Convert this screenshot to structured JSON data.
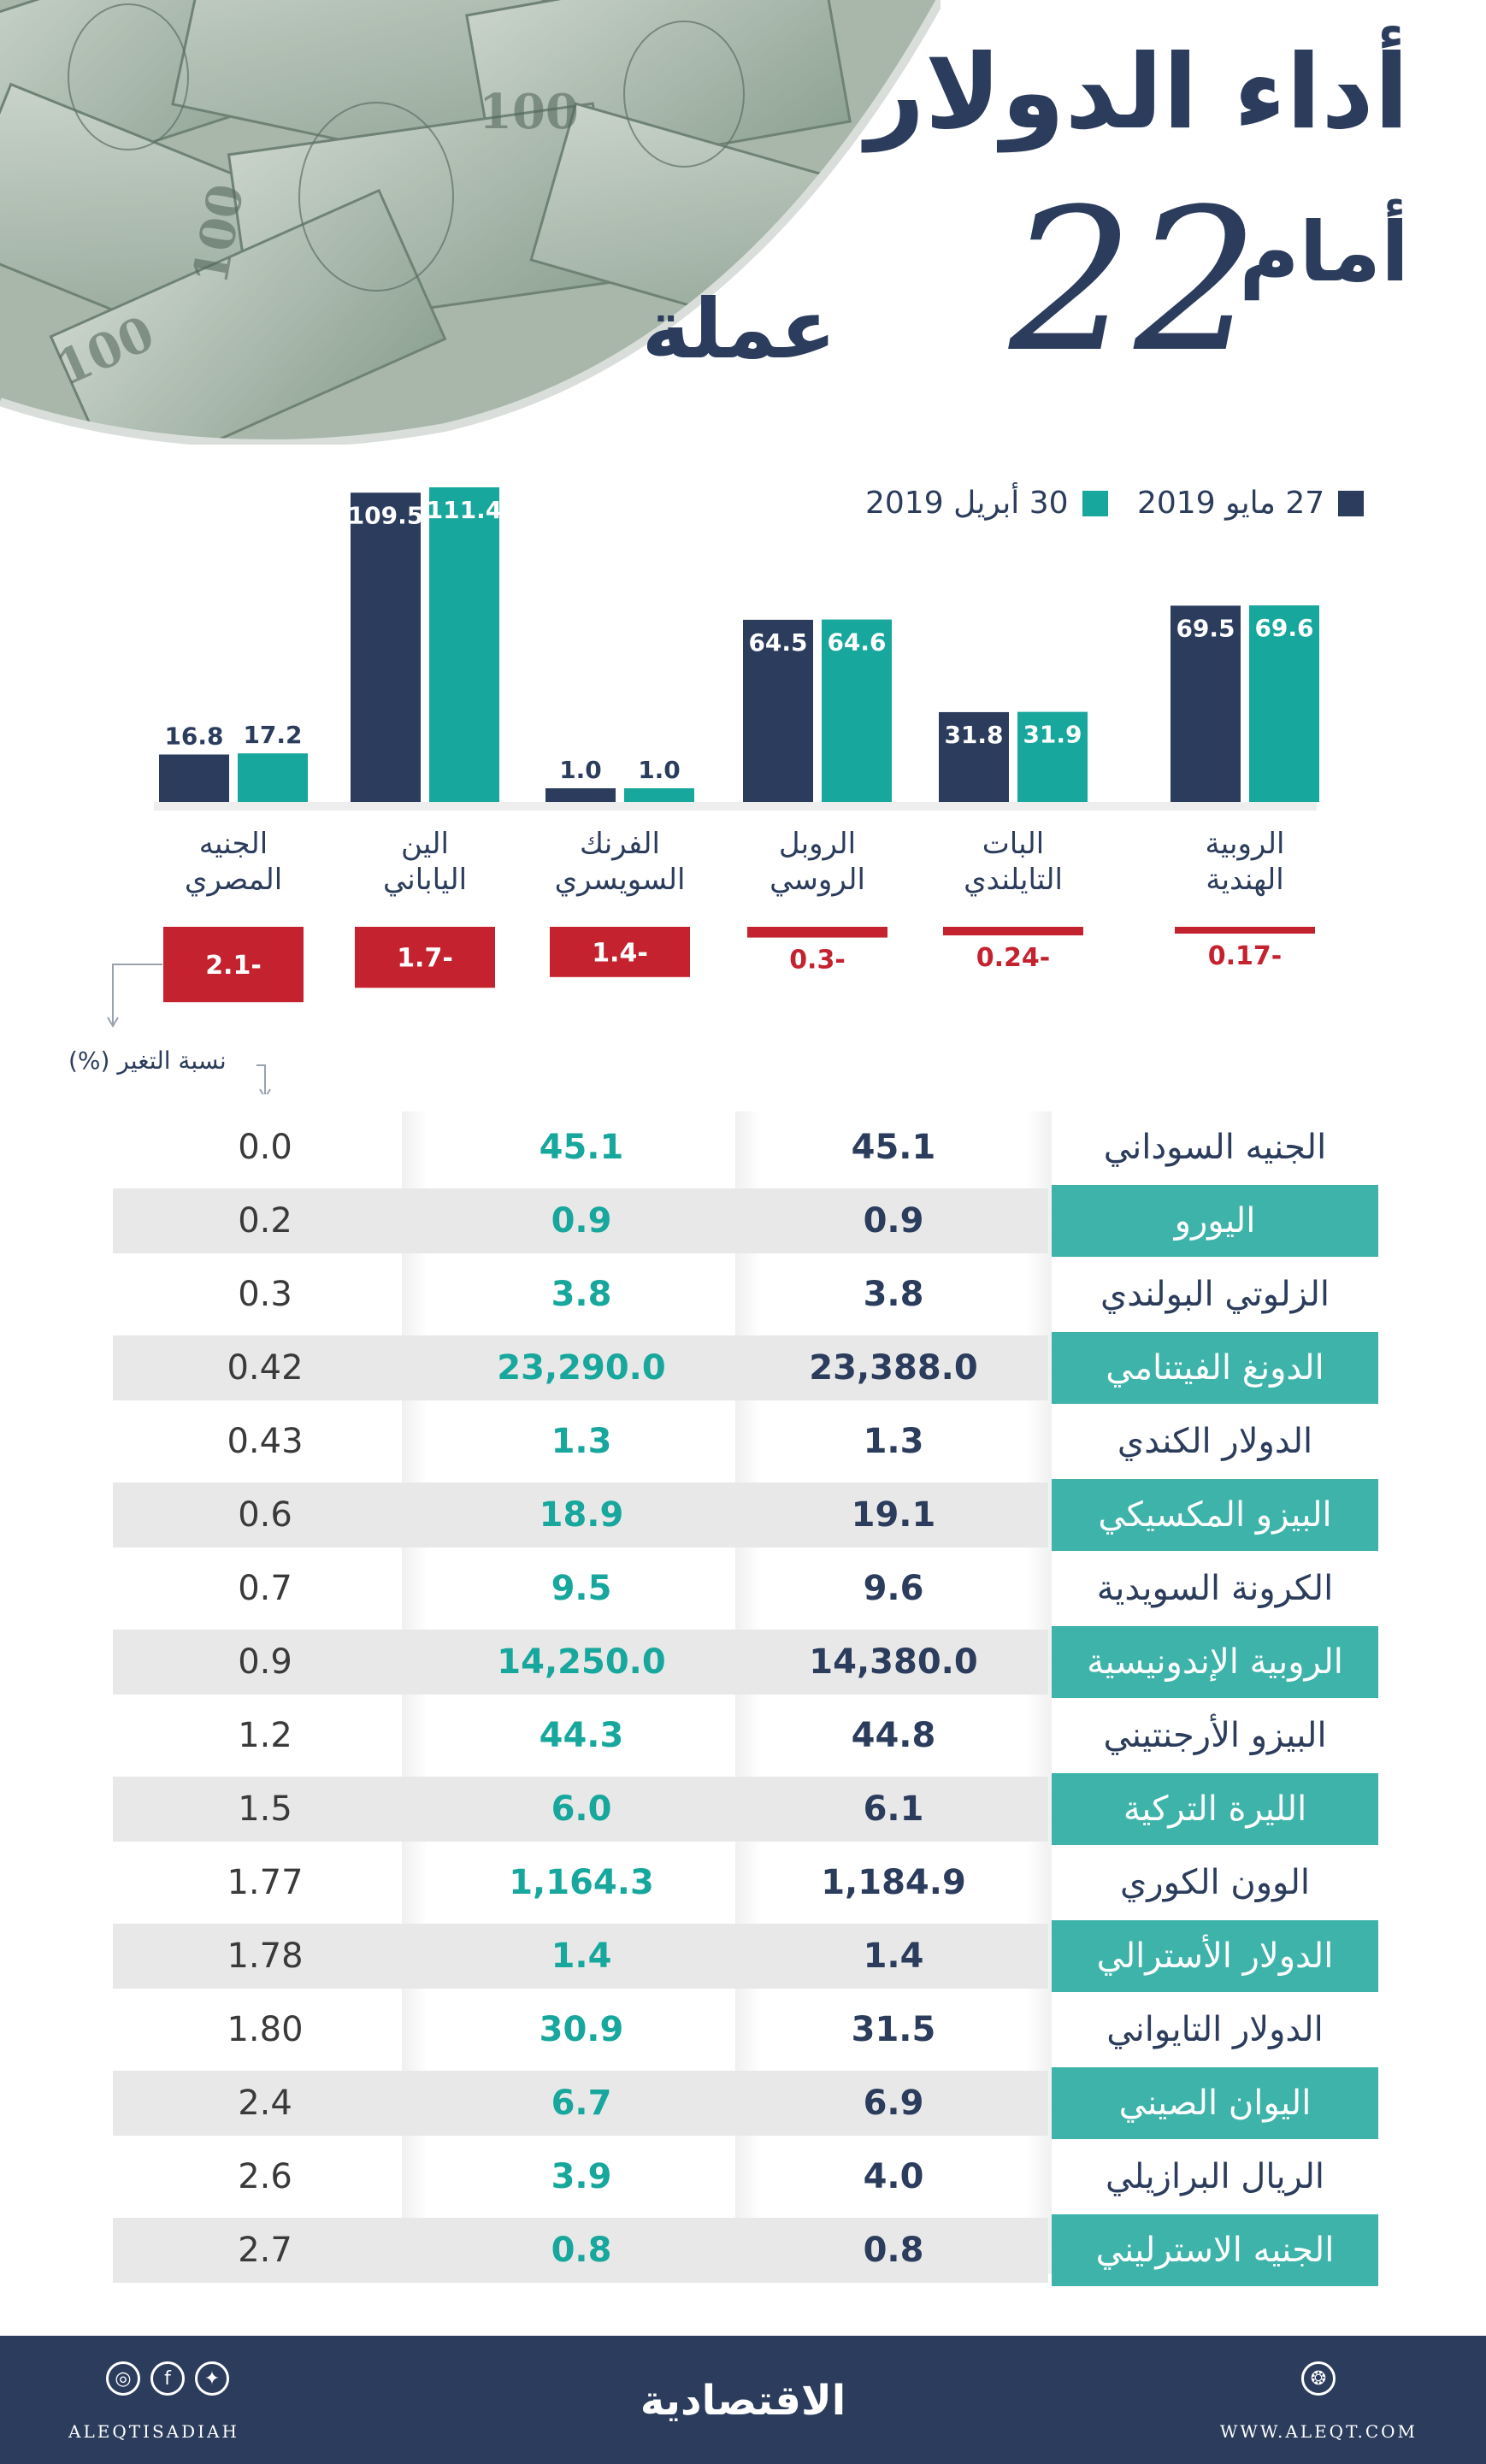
{
  "header": {
    "title_line1": "أداء الدولار",
    "title_line2": "أمام",
    "title_number": "22",
    "title_line3": "عملة"
  },
  "colors": {
    "navy": "#2b3c5c",
    "teal": "#17a79c",
    "red": "#c4222e",
    "row_band": "#e8e8e8",
    "teal_band": "#3db3aa"
  },
  "legend": {
    "may": "27 مايو 2019",
    "april": "30 أبريل 2019"
  },
  "chart_data": {
    "type": "bar",
    "categories": [
      "الروبية الهندية",
      "البات التايلندي",
      "الروبل الروسي",
      "الفرنك السويسري",
      "الين الياباني",
      "الجنيه المصري"
    ],
    "category_lines": [
      [
        "الروبية",
        "الهندية"
      ],
      [
        "البات",
        "التايلندي"
      ],
      [
        "الروبل",
        "الروسي"
      ],
      [
        "الفرنك",
        "السويسري"
      ],
      [
        "الين",
        "الياباني"
      ],
      [
        "الجنيه",
        "المصري"
      ]
    ],
    "series": [
      {
        "name": "27 مايو 2019",
        "values": [
          69.5,
          31.8,
          64.5,
          1.0,
          109.5,
          16.8
        ],
        "labels": [
          "69.5",
          "31.8",
          "64.5",
          "1.0",
          "109.5",
          "16.8"
        ]
      },
      {
        "name": "30 أبريل 2019",
        "values": [
          69.6,
          31.9,
          64.6,
          1.0,
          111.4,
          17.2
        ],
        "labels": [
          "69.6",
          "31.9",
          "64.6",
          "1.0",
          "111.4",
          "17.2"
        ]
      }
    ],
    "change": {
      "values": [
        -0.17,
        -0.24,
        -0.3,
        -1.4,
        -1.7,
        -2.1
      ],
      "labels": [
        "0.17-",
        "0.24-",
        "0.3-",
        "1.4-",
        "1.7-",
        "2.1-"
      ],
      "label": "نسبة التغير (%)"
    }
  },
  "table": {
    "rows": [
      {
        "name": "الجنيه السوداني",
        "may": "45.1",
        "april": "45.1",
        "change": "0.0",
        "shaded": false
      },
      {
        "name": "اليورو",
        "may": "0.9",
        "april": "0.9",
        "change": "0.2",
        "shaded": true
      },
      {
        "name": "الزلوتي البولندي",
        "may": "3.8",
        "april": "3.8",
        "change": "0.3",
        "shaded": false
      },
      {
        "name": "الدونغ الفيتنامي",
        "may": "23,388.0",
        "april": "23,290.0",
        "change": "0.42",
        "shaded": true
      },
      {
        "name": "الدولار الكندي",
        "may": "1.3",
        "april": "1.3",
        "change": "0.43",
        "shaded": false
      },
      {
        "name": "البيزو المكسيكي",
        "may": "19.1",
        "april": "18.9",
        "change": "0.6",
        "shaded": true
      },
      {
        "name": "الكرونة السويدية",
        "may": "9.6",
        "april": "9.5",
        "change": "0.7",
        "shaded": false
      },
      {
        "name": "الروبية الإندونيسية",
        "may": "14,380.0",
        "april": "14,250.0",
        "change": "0.9",
        "shaded": true
      },
      {
        "name": "البيزو الأرجنتيني",
        "may": "44.8",
        "april": "44.3",
        "change": "1.2",
        "shaded": false
      },
      {
        "name": "الليرة التركية",
        "may": "6.1",
        "april": "6.0",
        "change": "1.5",
        "shaded": true
      },
      {
        "name": "الوون الكوري",
        "may": "1,184.9",
        "april": "1,164.3",
        "change": "1.77",
        "shaded": false
      },
      {
        "name": "الدولار الأسترالي",
        "may": "1.4",
        "april": "1.4",
        "change": "1.78",
        "shaded": true
      },
      {
        "name": "الدولار التايواني",
        "may": "31.5",
        "april": "30.9",
        "change": "1.80",
        "shaded": false
      },
      {
        "name": "اليوان الصيني",
        "may": "6.9",
        "april": "6.7",
        "change": "2.4",
        "shaded": true
      },
      {
        "name": "الريال البرازيلي",
        "may": "4.0",
        "april": "3.9",
        "change": "2.6",
        "shaded": false
      },
      {
        "name": "الجنيه الاسترليني",
        "may": "0.8",
        "april": "0.8",
        "change": "2.7",
        "shaded": true
      }
    ]
  },
  "footer": {
    "brand": "الاقتصادية",
    "website": "WWW.ALEQT.COM",
    "handle": "ALEQTISADIAH",
    "icons": [
      "instagram-icon",
      "facebook-icon",
      "twitter-icon",
      "aleqt-logo-icon"
    ]
  }
}
